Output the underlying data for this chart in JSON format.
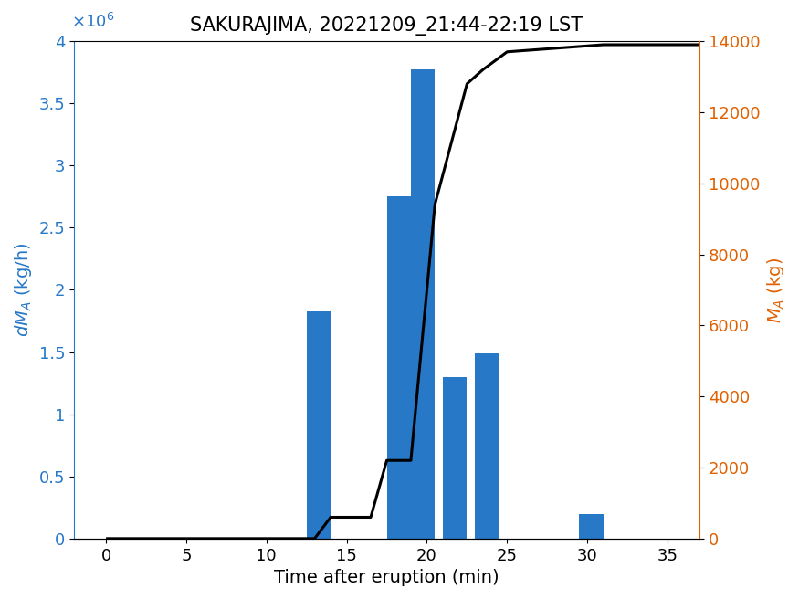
{
  "title": "SAKURAJIMA, 20221209_21:44-22:19 LST",
  "xlabel": "Time after eruption (min)",
  "ylabel_left": "dM_A (kg/h)",
  "ylabel_right": "M_A (kg)",
  "bar_lefts": [
    12.5,
    17.5,
    19.0,
    21.0,
    23.0,
    24.5,
    29.5
  ],
  "bar_heights": [
    1830000.0,
    2750000.0,
    3770000.0,
    1300000.0,
    1490000.0,
    0.0,
    200000.0
  ],
  "bar_width": 1.5,
  "bar_color": "#2878c8",
  "xlim": [
    -2,
    37
  ],
  "ylim_left": [
    0,
    4000000.0
  ],
  "ylim_right": [
    0,
    14000
  ],
  "xticks": [
    0,
    5,
    10,
    15,
    20,
    25,
    30,
    35
  ],
  "yticks_left": [
    0,
    500000.0,
    1000000.0,
    1500000.0,
    2000000.0,
    2500000.0,
    3000000.0,
    3500000.0,
    4000000.0
  ],
  "yticks_right": [
    0,
    2000,
    4000,
    6000,
    8000,
    10000,
    12000,
    14000
  ],
  "cumulative_x": [
    0,
    12.5,
    13.0,
    14.0,
    16.5,
    17.5,
    19.0,
    20.5,
    22.5,
    23.5,
    25.0,
    31.0,
    37.0
  ],
  "cumulative_y": [
    0,
    0,
    0,
    600,
    600,
    2200,
    2200,
    9400,
    12800,
    13200,
    13700,
    13900,
    13900
  ],
  "line_color": "#000000",
  "line_width": 2.2,
  "left_label_color": "#2878c8",
  "right_label_color": "#e06000",
  "title_fontsize": 15,
  "axis_fontsize": 14,
  "tick_fontsize": 13,
  "figsize": [
    8.75,
    6.56
  ],
  "dpi": 100
}
